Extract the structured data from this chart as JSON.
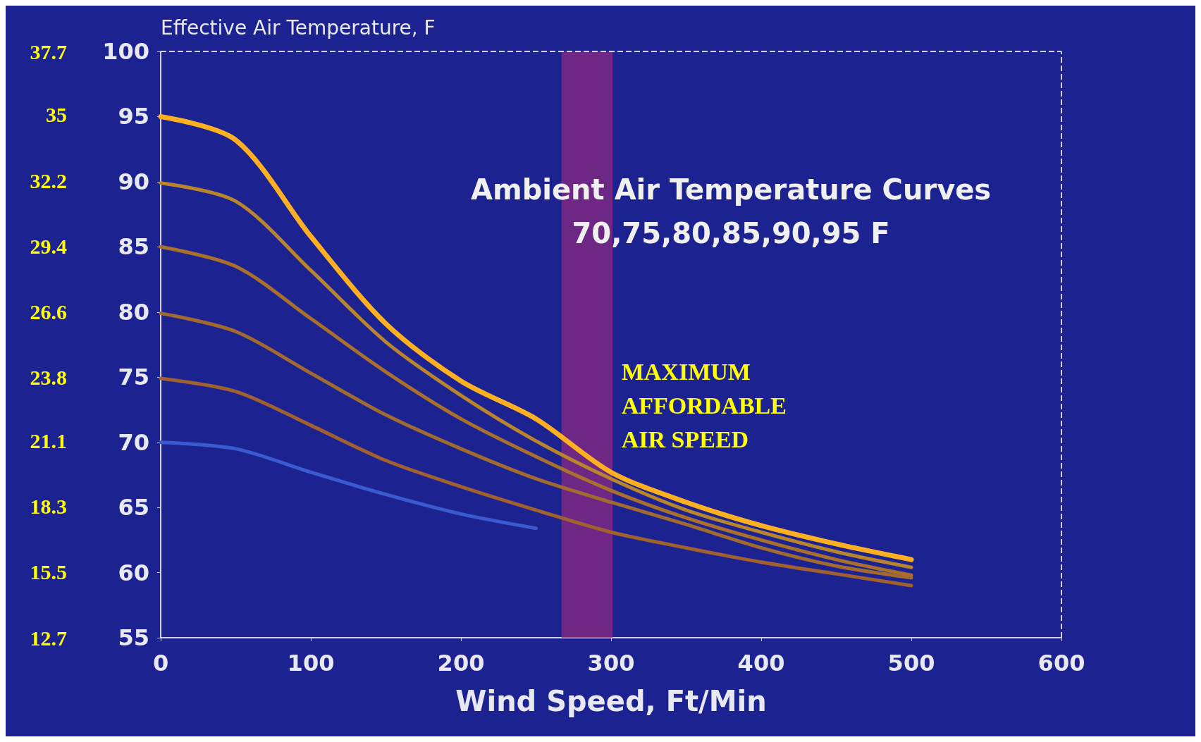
{
  "chart_data": {
    "type": "line",
    "ylabel": "Effective Air Temperature, F",
    "xlabel": "Wind Speed, Ft/Min",
    "annotations": [
      "Ambient Air Temperature Curves\n70,75,80,85,90,95 F"
    ],
    "xlim": [
      0,
      600
    ],
    "xticks": [
      0,
      100,
      200,
      300,
      400,
      500,
      600
    ],
    "ylim": [
      55,
      100
    ],
    "yticks": [
      55,
      60,
      65,
      70,
      75,
      80,
      85,
      90,
      95,
      100
    ],
    "y2lim": [
      12.7,
      37.7
    ],
    "y2ticks": [
      12.7,
      15.5,
      18.3,
      21.1,
      23.8,
      26.6,
      29.4,
      32.2,
      35,
      37.7
    ],
    "bands": [
      {
        "axis": "x",
        "from": 267,
        "to": 301,
        "label": "MAXIMUM\nAFFORDABLE\nAIR SPEED",
        "color": "#8a2a80"
      }
    ],
    "grid": false,
    "marker": "none",
    "line_style": "solid",
    "series": [
      {
        "color": "#ffb020",
        "x": [
          0,
          50,
          100,
          150,
          200,
          250,
          300,
          350,
          400,
          450,
          500
        ],
        "values": [
          95,
          93.2,
          85.8,
          79.1,
          74.7,
          71.8,
          67.7,
          65.4,
          63.6,
          62.2,
          61
        ]
      },
      {
        "color": "#b8842c",
        "x": [
          0,
          50,
          100,
          150,
          200,
          250,
          300,
          350,
          400,
          450,
          500
        ],
        "values": [
          89.9,
          88.5,
          83.2,
          77.7,
          73.6,
          70.1,
          67.2,
          64.8,
          63.1,
          61.6,
          60.4
        ]
      },
      {
        "color": "#a8702c",
        "x": [
          0,
          50,
          100,
          150,
          200,
          250,
          300,
          350,
          400,
          450,
          500
        ],
        "values": [
          85,
          83.5,
          79.5,
          75.4,
          71.8,
          68.9,
          66.3,
          64.2,
          62.5,
          61,
          59.8
        ]
      },
      {
        "color": "#a06a30",
        "x": [
          0,
          50,
          100,
          150,
          200,
          250,
          300,
          350,
          400,
          450,
          500
        ],
        "values": [
          79.9,
          78.5,
          75.3,
          72.1,
          69.5,
          67.2,
          65.4,
          63.7,
          61.9,
          60.5,
          59.6
        ]
      },
      {
        "color": "#a06030",
        "x": [
          0,
          50,
          100,
          150,
          200,
          250,
          300,
          350,
          400,
          450,
          500
        ],
        "values": [
          74.9,
          73.9,
          71.3,
          68.6,
          66.6,
          64.8,
          63.1,
          61.9,
          60.8,
          59.9,
          59
        ]
      },
      {
        "color": "#3a5ad0",
        "x": [
          0,
          50,
          100,
          150,
          200,
          250
        ],
        "values": [
          70,
          69.5,
          67.7,
          66,
          64.5,
          63.4
        ]
      }
    ]
  }
}
